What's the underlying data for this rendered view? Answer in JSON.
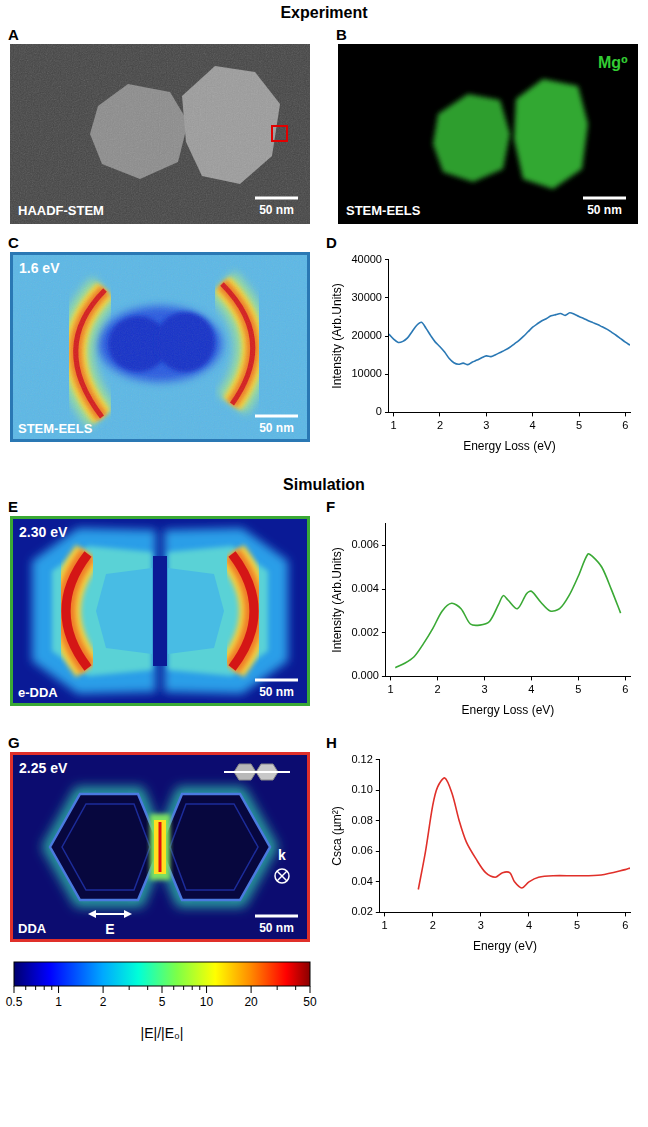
{
  "figure": {
    "sections": [
      "Experiment",
      "Simulation"
    ],
    "panels": {
      "A": {
        "letter": "A",
        "label": "HAADF-STEM",
        "scale_bar": "50 nm"
      },
      "B": {
        "letter": "B",
        "label": "STEM-EELS",
        "scale_bar": "50 nm",
        "element": "Mg⁰"
      },
      "C": {
        "letter": "C",
        "label": "STEM-EELS",
        "energy": "1.6 eV",
        "scale_bar": "50 nm"
      },
      "E": {
        "letter": "E",
        "label": "e-DDA",
        "energy": "2.30 eV",
        "scale_bar": "50 nm"
      },
      "G": {
        "letter": "G",
        "label": "DDA",
        "energy": "2.25 eV",
        "scale_bar": "50 nm",
        "wave_vector": "k",
        "field": "E"
      }
    },
    "colorbar": {
      "label": "|E|/|E₀|",
      "log": true,
      "range": [
        0.5,
        50
      ],
      "ticks": [
        0.5,
        1,
        2,
        5,
        10,
        20,
        50
      ],
      "minor_ticks": [
        0.6,
        0.7,
        0.8,
        0.9,
        3,
        4,
        6,
        7,
        8,
        9,
        30,
        40
      ]
    }
  },
  "chart_data": [
    {
      "letter": "D",
      "type": "line",
      "xlabel": "Energy Loss (eV)",
      "ylabel": "Intensity (Arb.Units)",
      "color": "#2a78b4",
      "grid": false,
      "xlim": [
        0.9,
        6.1
      ],
      "xticks": [
        1,
        2,
        3,
        4,
        5,
        6
      ],
      "ylim": [
        0,
        40000
      ],
      "yticks": [
        0,
        10000,
        20000,
        30000,
        40000
      ],
      "x": [
        0.9,
        1.0,
        1.1,
        1.2,
        1.3,
        1.4,
        1.5,
        1.6,
        1.7,
        1.8,
        1.9,
        2.0,
        2.1,
        2.2,
        2.3,
        2.4,
        2.5,
        2.6,
        2.7,
        2.8,
        2.9,
        3.0,
        3.1,
        3.2,
        3.3,
        3.4,
        3.5,
        3.6,
        3.7,
        3.8,
        3.9,
        4.0,
        4.1,
        4.2,
        4.3,
        4.4,
        4.5,
        4.6,
        4.7,
        4.8,
        4.9,
        5.0,
        5.1,
        5.2,
        5.3,
        5.4,
        5.5,
        5.6,
        5.7,
        5.8,
        5.9,
        6.0,
        6.1
      ],
      "values": [
        20500,
        19200,
        18300,
        18600,
        19500,
        21200,
        22800,
        23600,
        22000,
        20100,
        18400,
        17200,
        15800,
        14100,
        13000,
        12600,
        12900,
        12500,
        13200,
        13700,
        14300,
        14800,
        14600,
        15100,
        15700,
        16300,
        17000,
        17900,
        18800,
        19900,
        21100,
        22300,
        23200,
        24000,
        24600,
        25300,
        25600,
        25900,
        25400,
        26100,
        25700,
        25100,
        24600,
        24000,
        23500,
        23000,
        22400,
        21800,
        21000,
        20200,
        19300,
        18400,
        17600
      ]
    },
    {
      "letter": "F",
      "type": "line",
      "xlabel": "Energy Loss (eV)",
      "ylabel": "Intensity (Arb.Units)",
      "color": "#3aa935",
      "grid": false,
      "xlim": [
        0.9,
        6.1
      ],
      "xticks": [
        1,
        2,
        3,
        4,
        5,
        6
      ],
      "ylim": [
        0,
        0.007
      ],
      "yticks": [
        {
          "value": 0,
          "label": "0.000"
        },
        {
          "value": 0.002,
          "label": "0.002"
        },
        {
          "value": 0.004,
          "label": "0.004"
        },
        {
          "value": 0.006,
          "label": "0.006"
        }
      ],
      "x": [
        1.1,
        1.3,
        1.5,
        1.7,
        1.9,
        2.1,
        2.3,
        2.5,
        2.7,
        2.9,
        3.1,
        3.3,
        3.4,
        3.5,
        3.7,
        3.9,
        4.0,
        4.2,
        4.4,
        4.6,
        4.8,
        5.0,
        5.2,
        5.3,
        5.5,
        5.7,
        5.9
      ],
      "values": [
        0.0004,
        0.0006,
        0.0009,
        0.0015,
        0.0022,
        0.003,
        0.00335,
        0.0031,
        0.0024,
        0.00235,
        0.0025,
        0.0033,
        0.0037,
        0.0035,
        0.0031,
        0.0038,
        0.0039,
        0.0034,
        0.003,
        0.0031,
        0.0037,
        0.0046,
        0.0056,
        0.0055,
        0.005,
        0.004,
        0.0029
      ]
    },
    {
      "letter": "H",
      "type": "line",
      "xlabel": "Energy (eV)",
      "ylabel": "Csca (µm²)",
      "color": "#e0302a",
      "grid": false,
      "xlim": [
        0.9,
        6.1
      ],
      "xticks": [
        1,
        2,
        3,
        4,
        5,
        6
      ],
      "ylim": [
        0.02,
        0.12
      ],
      "yticks": [
        {
          "value": 0.02,
          "label": "0.02"
        },
        {
          "value": 0.04,
          "label": "0.04"
        },
        {
          "value": 0.06,
          "label": "0.06"
        },
        {
          "value": 0.08,
          "label": "0.08"
        },
        {
          "value": 0.1,
          "label": "0.10"
        },
        {
          "value": 0.12,
          "label": "0.12"
        }
      ],
      "x": [
        1.7,
        1.85,
        2.0,
        2.1,
        2.25,
        2.4,
        2.55,
        2.7,
        2.9,
        3.1,
        3.3,
        3.45,
        3.6,
        3.7,
        3.85,
        4.0,
        4.2,
        4.5,
        5.0,
        5.5,
        6.0,
        6.1
      ],
      "values": [
        0.035,
        0.06,
        0.09,
        0.102,
        0.108,
        0.098,
        0.08,
        0.066,
        0.055,
        0.046,
        0.043,
        0.046,
        0.046,
        0.04,
        0.036,
        0.04,
        0.043,
        0.044,
        0.044,
        0.0445,
        0.048,
        0.049
      ]
    }
  ]
}
